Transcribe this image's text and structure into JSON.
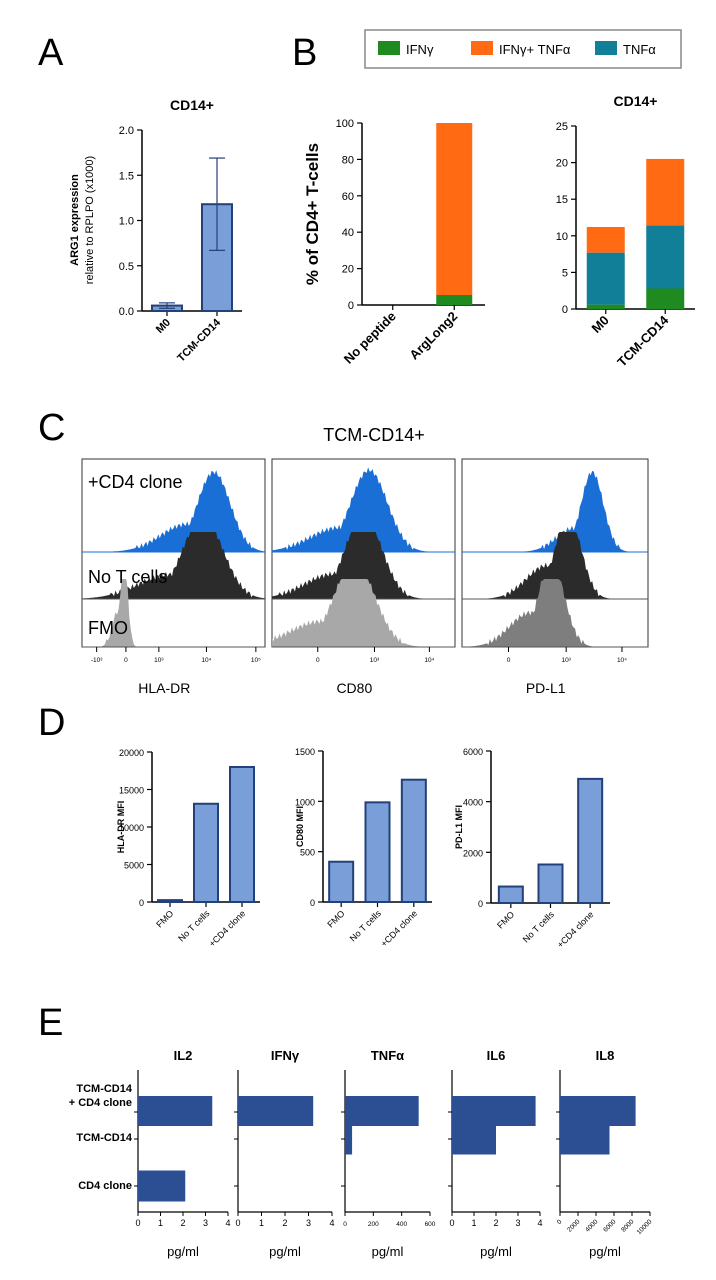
{
  "panels": {
    "A": "A",
    "B": "B",
    "C": "C",
    "D": "D",
    "E": "E"
  },
  "legend": {
    "entries": [
      {
        "label": "IFNγ",
        "color": "#1f8a1f"
      },
      {
        "label": "IFNγ+ TNFα",
        "color": "#ff6a13"
      },
      {
        "label": "TNFα",
        "color": "#127f99"
      }
    ]
  },
  "colors": {
    "bar_light": "#7a9fd8",
    "bar_light_edge": "#23407a",
    "bar_dark": "#2c4f94",
    "flow_blue": "#1a6fd6",
    "flow_black": "#2b2b2b",
    "flow_gray": "#a8a8a8",
    "flow_gray_mid": "#7e7e7e"
  },
  "flow": {
    "title": "TCM-CD14+",
    "row_labels": [
      "+CD4 clone",
      "No T cells",
      "FMO"
    ],
    "row_colors": [
      "#1f4fa0",
      "#222222",
      "#888888"
    ],
    "markers": [
      "HLA-DR",
      "CD80",
      "PD-L1"
    ],
    "tick_sets": [
      [
        "-10³",
        "0",
        "10³",
        "10⁴",
        "10⁵"
      ],
      [
        "0",
        "10³",
        "10⁴"
      ],
      [
        "0",
        "10³",
        "10⁴"
      ]
    ]
  },
  "chart_data": [
    {
      "id": "A",
      "type": "bar",
      "title": "CD14+",
      "categories": [
        "M0",
        "TCM-CD14"
      ],
      "values": [
        0.06,
        1.18
      ],
      "error": [
        0.03,
        0.51
      ],
      "ylabel_line1": "ARG1 expression",
      "ylabel_line2": "relative to RPLPO (x1000)",
      "ylim": [
        0,
        2.0
      ],
      "yticks": [
        "0.0",
        "0.5",
        "1.0",
        "1.5",
        "2.0"
      ]
    },
    {
      "id": "B1",
      "type": "bar",
      "stacked": true,
      "title": "",
      "ylabel": "% of CD4+ T-cells",
      "categories": [
        "No peptide",
        "ArgLong2"
      ],
      "series": [
        {
          "name": "IFNγ",
          "values": [
            0,
            5.5
          ]
        },
        {
          "name": "IFNγ+ TNFα",
          "values": [
            0,
            94.5
          ]
        },
        {
          "name": "TNFα",
          "values": [
            0,
            0
          ]
        }
      ],
      "ylim": [
        0,
        100
      ],
      "yticks": [
        "0",
        "20",
        "40",
        "60",
        "80",
        "100"
      ]
    },
    {
      "id": "B2",
      "type": "bar",
      "stacked": true,
      "title": "CD14+",
      "categories": [
        "M0",
        "TCM-CD14"
      ],
      "series": [
        {
          "name": "IFNγ",
          "values": [
            0.6,
            2.8
          ]
        },
        {
          "name": "IFNγ+ TNFα",
          "values": [
            3.5,
            9.1
          ]
        },
        {
          "name": "TNFα",
          "values": [
            7.1,
            8.6
          ]
        }
      ],
      "ylim": [
        0,
        25
      ],
      "yticks": [
        "0",
        "5",
        "10",
        "15",
        "20",
        "25"
      ]
    },
    {
      "id": "D1",
      "type": "bar",
      "ylabel": "HLA-DR MFI",
      "categories": [
        "FMO",
        "No T cells",
        "+CD4 clone"
      ],
      "values": [
        250,
        13100,
        18000
      ],
      "ylim": [
        0,
        20000
      ],
      "yticks": [
        "0",
        "5000",
        "10000",
        "15000",
        "20000"
      ]
    },
    {
      "id": "D2",
      "type": "bar",
      "ylabel": "CD80 MFI",
      "categories": [
        "FMO",
        "No T cells",
        "+CD4 clone"
      ],
      "values": [
        400,
        990,
        1215
      ],
      "ylim": [
        0,
        1500
      ],
      "yticks": [
        "0",
        "500",
        "1000",
        "1500"
      ]
    },
    {
      "id": "D3",
      "type": "bar",
      "ylabel": "PD-L1 MFI",
      "categories": [
        "FMO",
        "No T cells",
        "+CD4 clone"
      ],
      "values": [
        650,
        1520,
        4900
      ],
      "ylim": [
        0,
        6000
      ],
      "yticks": [
        "0",
        "2000",
        "4000",
        "6000"
      ]
    },
    {
      "id": "E",
      "type": "bar",
      "orientation": "horizontal",
      "categories": [
        "TCM-CD14\n+ CD4 clone",
        "TCM-CD14",
        "CD4 clone"
      ],
      "unit": "pg/ml",
      "subplots": [
        {
          "title": "IL2",
          "values": [
            3.3,
            0,
            2.1
          ],
          "xlim": [
            0,
            4
          ],
          "xticks": [
            "0",
            "1",
            "2",
            "3",
            "4"
          ]
        },
        {
          "title": "IFNγ",
          "values": [
            3.2,
            0,
            0
          ],
          "xlim": [
            0,
            4
          ],
          "xticks": [
            "0",
            "1",
            "2",
            "3",
            "4"
          ]
        },
        {
          "title": "TNFα",
          "values": [
            520,
            50,
            0
          ],
          "xlim": [
            0,
            600
          ],
          "xticks": [
            "0",
            "200",
            "400",
            "600"
          ]
        },
        {
          "title": "IL6",
          "values": [
            3.8,
            2.0,
            0
          ],
          "xlim": [
            0,
            4
          ],
          "xticks": [
            "0",
            "1",
            "2",
            "3",
            "4"
          ]
        },
        {
          "title": "IL8",
          "values": [
            8400,
            5500,
            0
          ],
          "xlim": [
            0,
            10000
          ],
          "xticks": [
            "0",
            "2000",
            "4000",
            "6000",
            "8000",
            "10000"
          ]
        }
      ]
    }
  ]
}
